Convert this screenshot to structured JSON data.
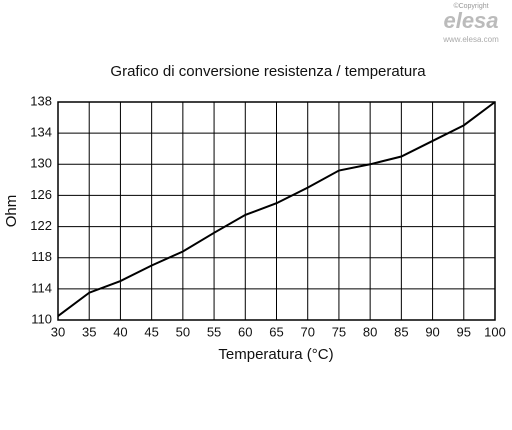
{
  "chart_data": {
    "type": "line",
    "title": "Grafico di conversione resistenza / temperatura",
    "x_label": "Temperatura (°C)",
    "y_label": "Ohm",
    "x": [
      30,
      35,
      40,
      45,
      50,
      55,
      60,
      65,
      70,
      75,
      80,
      85,
      90,
      95,
      100
    ],
    "values": [
      110.5,
      113.5,
      115,
      117,
      118.8,
      121.2,
      123.5,
      125,
      127,
      129.2,
      130,
      131,
      133,
      135,
      138
    ],
    "color": "#000000",
    "xlim": [
      30,
      100
    ],
    "xticks": [
      30,
      35,
      40,
      45,
      50,
      55,
      60,
      65,
      70,
      75,
      80,
      85,
      90,
      95,
      100
    ],
    "ylim": [
      110,
      138
    ],
    "yticks": [
      110,
      114,
      118,
      122,
      126,
      130,
      134,
      138
    ],
    "grid": true
  },
  "watermark": {
    "copyright": "©Copyright",
    "brand": "elesa",
    "url": "www.elesa.com"
  }
}
